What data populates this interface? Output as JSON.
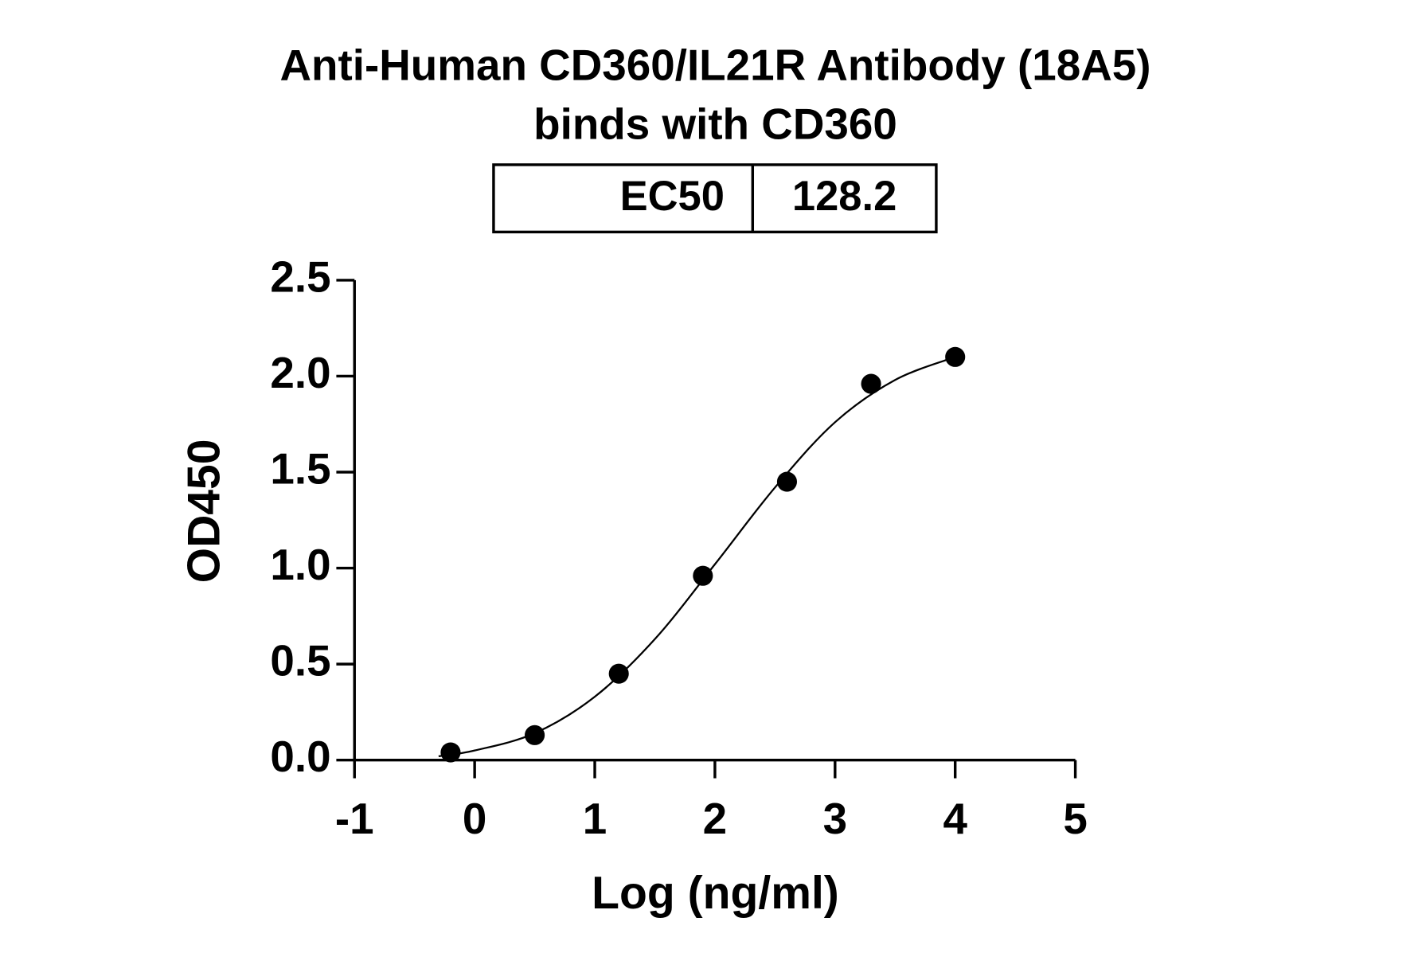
{
  "chart_data": {
    "type": "scatter",
    "title": [
      "Anti-Human CD360/IL21R Antibody (18A5)",
      "binds with CD360"
    ],
    "table": [
      "EC50",
      "128.2"
    ],
    "xlabel": "Log (ng/ml)",
    "ylabel": "OD450",
    "x": [
      -0.2,
      0.5,
      1.2,
      1.9,
      2.6,
      3.3,
      4.0
    ],
    "values": [
      0.04,
      0.13,
      0.45,
      0.96,
      1.45,
      1.96,
      2.1
    ],
    "color": "#000000",
    "curve": {
      "x": [
        -0.3,
        0,
        0.5,
        1.0,
        1.5,
        2.0,
        2.5,
        3.0,
        3.5,
        4.0
      ],
      "values": [
        0.02,
        0.05,
        0.14,
        0.33,
        0.63,
        1.02,
        1.42,
        1.76,
        1.98,
        2.1
      ]
    },
    "xlim": [
      -1,
      5
    ],
    "xticks": [
      -1,
      0,
      1,
      2,
      3,
      4,
      5
    ],
    "ylim": [
      0,
      2.5
    ],
    "yticks": [
      {
        "value": 0,
        "label": "0.0"
      },
      0.5,
      {
        "value": 1,
        "label": "1.0"
      },
      1.5,
      {
        "value": 2,
        "label": "2.0"
      },
      2.5
    ]
  }
}
